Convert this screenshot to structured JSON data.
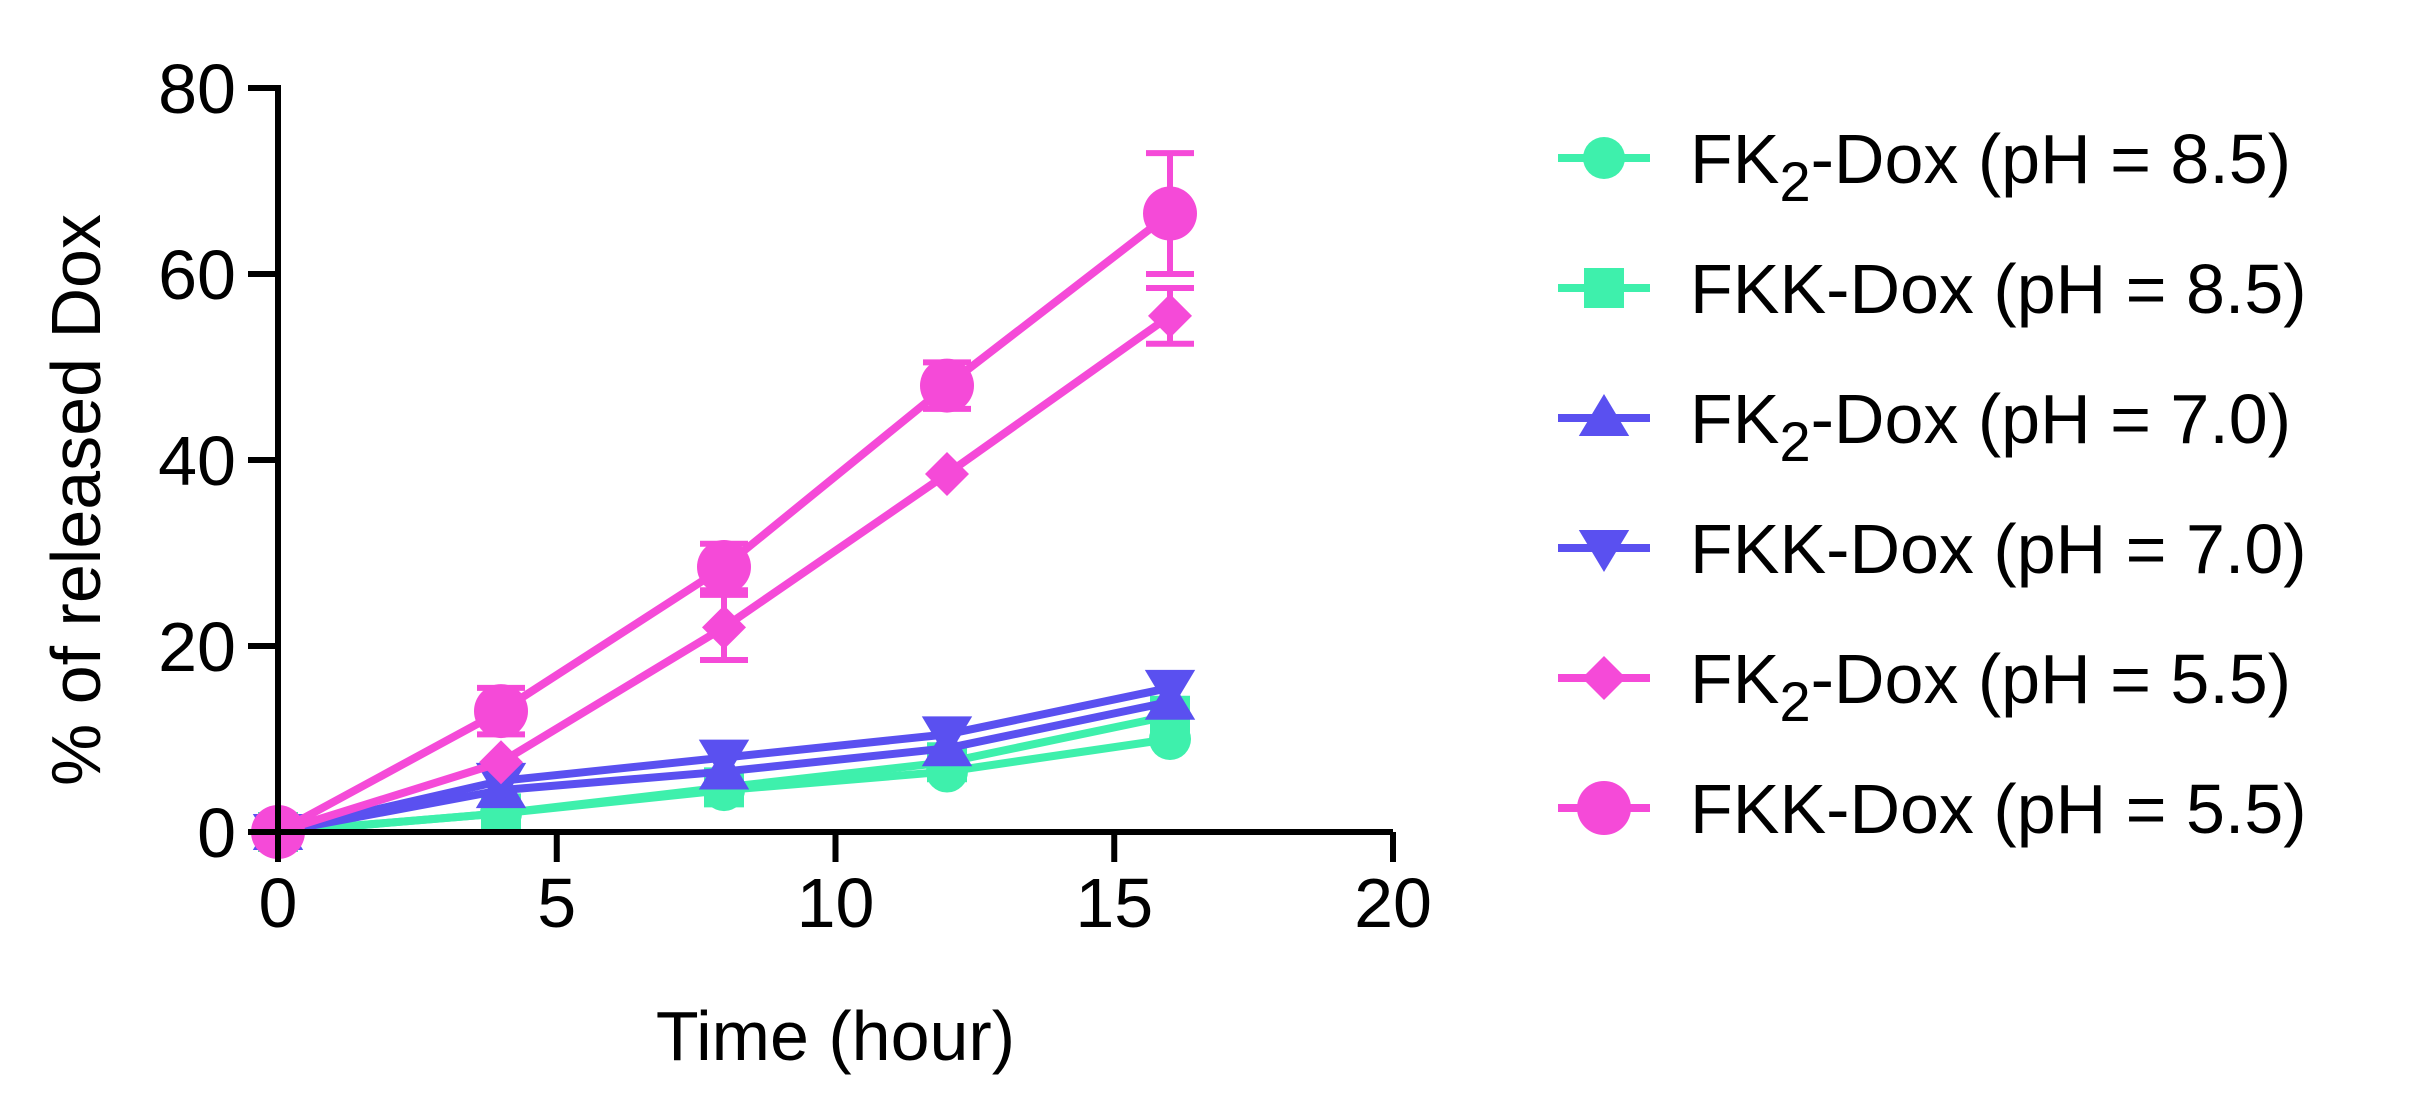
{
  "chart_data": {
    "type": "line",
    "title": "",
    "xlabel": "Time (hour)",
    "ylabel": "% of released Dox",
    "xlim": [
      0,
      20
    ],
    "ylim": [
      0,
      80
    ],
    "xticks": [
      0,
      5,
      10,
      15,
      20
    ],
    "yticks": [
      0,
      20,
      40,
      60,
      80
    ],
    "x": [
      0,
      4,
      8,
      12,
      16
    ],
    "series": [
      {
        "name": "FK2-Dox (pH = 8.5)",
        "label_main": "FK",
        "label_sub": "2",
        "label_rest": "-Dox (pH = 8.5)",
        "color": "#3ef0ac",
        "marker": "circle",
        "values": [
          0,
          2,
          4.5,
          6.5,
          10
        ],
        "errors": [
          0,
          0,
          0,
          0,
          0
        ]
      },
      {
        "name": "FKK-Dox (pH = 8.5)",
        "label_main": "FKK-Dox (pH = 8.5)",
        "label_sub": "",
        "label_rest": "",
        "color": "#3ef0ac",
        "marker": "square",
        "values": [
          0,
          2,
          4.8,
          7.5,
          12.5
        ],
        "errors": [
          0,
          0,
          0,
          0,
          0
        ]
      },
      {
        "name": "FK2-Dox (pH = 7.0)",
        "label_main": "FK",
        "label_sub": "2",
        "label_rest": "-Dox (pH = 7.0)",
        "color": "#5a50f0",
        "marker": "triangle-up",
        "values": [
          0,
          4.5,
          6.5,
          9,
          14
        ],
        "errors": [
          0,
          0,
          0,
          0,
          0
        ]
      },
      {
        "name": "FKK-Dox (pH = 7.0)",
        "label_main": "FKK-Dox (pH = 7.0)",
        "label_sub": "",
        "label_rest": "",
        "color": "#5a50f0",
        "marker": "triangle-down",
        "values": [
          0,
          5.5,
          8,
          10.5,
          15.5
        ],
        "errors": [
          0,
          0,
          0,
          0,
          0
        ]
      },
      {
        "name": "FK2-Dox (pH = 5.5)",
        "label_main": "FK",
        "label_sub": "2",
        "label_rest": "-Dox (pH = 5.5)",
        "color": "#f54ad8",
        "marker": "diamond",
        "values": [
          0,
          7.5,
          22,
          38.5,
          55.5
        ],
        "errors": [
          0,
          0,
          3.5,
          0,
          3
        ]
      },
      {
        "name": "FKK-Dox (pH = 5.5)",
        "label_main": "FKK-Dox (pH = 5.5)",
        "label_sub": "",
        "label_rest": "",
        "color": "#f54ad8",
        "marker": "circle-large",
        "values": [
          0,
          13,
          28.5,
          48,
          66.5
        ],
        "errors": [
          0,
          2.5,
          2.5,
          2.5,
          6.5
        ]
      }
    ],
    "legend_position": "right"
  }
}
